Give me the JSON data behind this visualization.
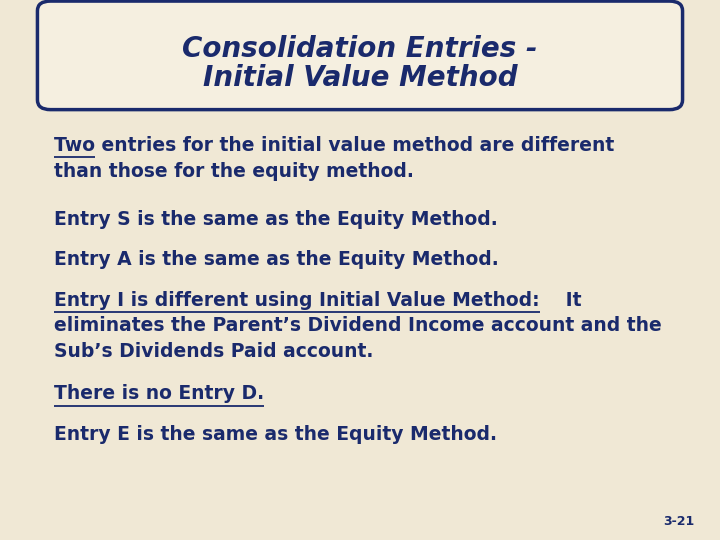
{
  "title_line1": "Consolidation Entries -",
  "title_line2": "Initial Value Method",
  "background_color": "#f0e8d5",
  "title_box_bg": "#f5efe0",
  "title_box_border": "#1a2a6c",
  "text_color": "#1a2a6c",
  "slide_number": "3-21",
  "fs_main": 13.5,
  "fs_title": 20,
  "fs_slide_num": 9
}
